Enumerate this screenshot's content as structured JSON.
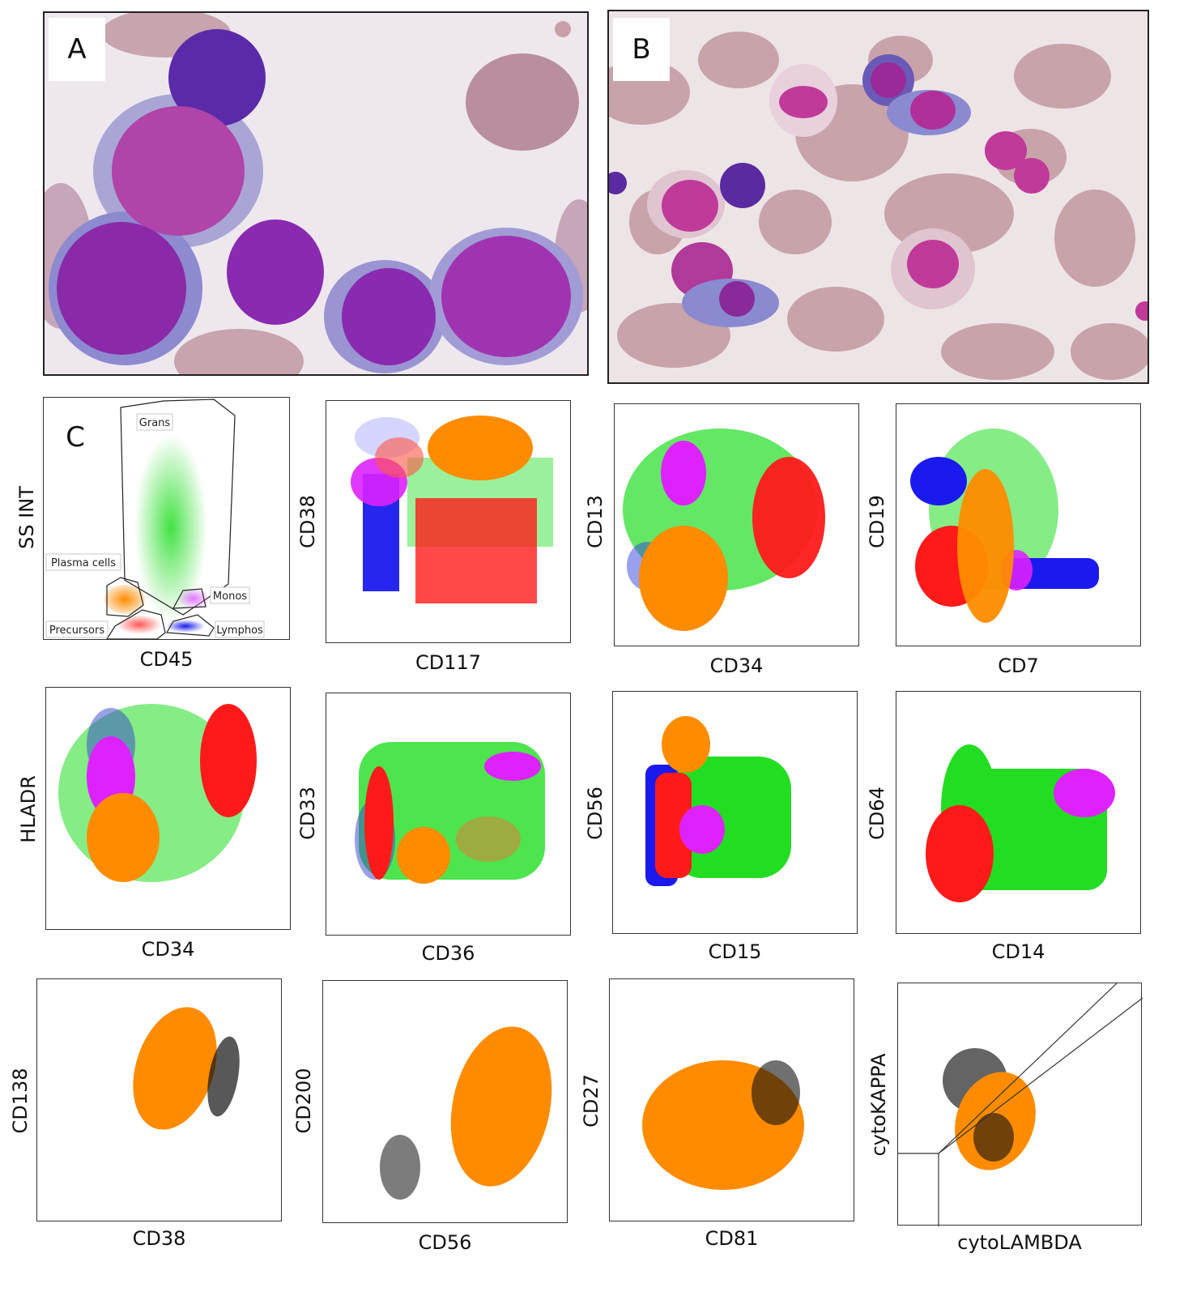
{
  "panel_labels": {
    "a": "A",
    "b": "B",
    "c": "C"
  },
  "gates": {
    "grans": "Grans",
    "plasma": "Plasma cells",
    "monos": "Monos",
    "precursors": "Precursors",
    "lymphos": "Lymphos"
  },
  "axes": {
    "p1": {
      "x": "CD45",
      "y": "SS INT"
    },
    "p2": {
      "x": "CD117",
      "y": "CD38"
    },
    "p3": {
      "x": "CD34",
      "y": "CD13"
    },
    "p4": {
      "x": "CD7",
      "y": "CD19"
    },
    "p5": {
      "x": "CD34",
      "y": "HLADR"
    },
    "p6": {
      "x": "CD36",
      "y": "CD33"
    },
    "p7": {
      "x": "CD15",
      "y": "CD56"
    },
    "p8": {
      "x": "CD14",
      "y": "CD64"
    },
    "p9": {
      "x": "CD38",
      "y": "CD138"
    },
    "p10": {
      "x": "CD56",
      "y": "CD200"
    },
    "p11": {
      "x": "CD81",
      "y": "CD27"
    },
    "p12": {
      "x": "cytoLAMBDA",
      "y": "cytoKAPPA"
    }
  },
  "colors": {
    "plasma": "#ff8c00",
    "precursors": "#ff1a1a",
    "grans": "#22dd22",
    "monos": "#dd22ff",
    "lymphos": "#1a1aee",
    "abnormal": "#111111",
    "cell_purple": "#7a2a9a",
    "cell_pink": "#c03a8a",
    "rbc": "#c9a0a8"
  }
}
